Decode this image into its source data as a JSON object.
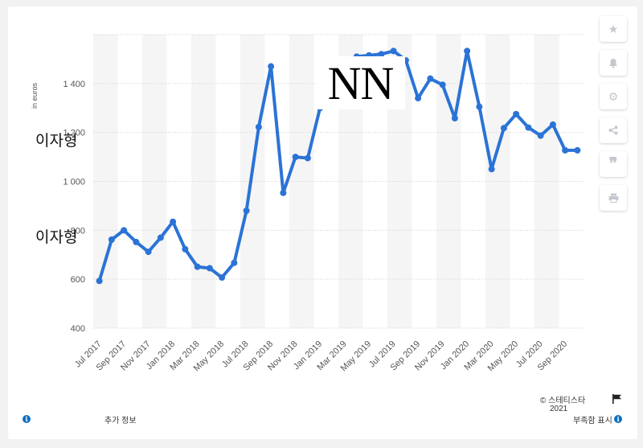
{
  "toolbar": {
    "icons": [
      "star-icon",
      "bell-icon",
      "gear-icon",
      "share-icon",
      "quote-icon",
      "print-icon"
    ]
  },
  "axis": {
    "ylabel": "in    euros"
  },
  "overlays": {
    "nn": "NN",
    "korean_1": "이자형",
    "korean_2": "이자형"
  },
  "footer": {
    "copyright": "© 스테티스타",
    "year": "2021",
    "more_info": "추가 정보",
    "show_source": "부족함 표시"
  },
  "colors": {
    "line": "#2b73d6",
    "band": "#f5f5f5",
    "grid": "#cfcfcf"
  },
  "chart_data": {
    "type": "line",
    "title": "",
    "xlabel": "",
    "ylabel": "in    euros",
    "ylim": [
      400,
      1600
    ],
    "yticks": [
      400,
      600,
      800,
      1000,
      1200,
      1400
    ],
    "ytick_labels": [
      "400",
      "600",
      "800",
      "1 000",
      "1 200",
      "1 400"
    ],
    "grid": true,
    "x": [
      "Jul 2017",
      "Aug 2017",
      "Sep 2017",
      "Oct 2017",
      "Nov 2017",
      "Dec 2017",
      "Jan 2018",
      "Feb 2018",
      "Mar 2018",
      "Apr 2018",
      "May 2018",
      "Jun 2018",
      "Jul 2018",
      "Aug 2018",
      "Sep 2018",
      "Oct 2018",
      "Nov 2018",
      "Dec 2018",
      "Jan 2019",
      "Feb 2019",
      "Mar 2019",
      "Apr 2019",
      "May 2019",
      "Jun 2019",
      "Jul 2019",
      "Aug 2019",
      "Sep 2019",
      "Oct 2019",
      "Nov 2019",
      "Dec 2019",
      "Jan 2020",
      "Feb 2020",
      "Mar 2020",
      "Apr 2020",
      "May 2020",
      "Jun 2020",
      "Jul 2020",
      "Aug 2020",
      "Sep 2020",
      "Oct 2020"
    ],
    "x_labels": [
      "Jul 2017",
      "",
      "Sep 2017",
      "",
      "Nov 2017",
      "",
      "Jan 2018",
      "",
      "Mar 2018",
      "",
      "May 2018",
      "",
      "Jul 2018",
      "",
      "Sep 2018",
      "",
      "Nov 2018",
      "",
      "Jan 2019",
      "",
      "Mar 2019",
      "",
      "May 2019",
      "",
      "Jul 2019",
      "",
      "Sep 2019",
      "",
      "Nov 2019",
      "",
      "Jan 2020",
      "",
      "Mar 2020",
      "",
      "May 2020",
      "",
      "Jul 2020",
      "",
      "Sep 2020",
      ""
    ],
    "series": [
      {
        "values": [
          593,
          762,
          800,
          752,
          712,
          770,
          835,
          723,
          651,
          645,
          607,
          667,
          880,
          1222,
          1470,
          953,
          1100,
          1095,
          1300,
          1400,
          1480,
          1510,
          1515,
          1520,
          1533,
          1495,
          1340,
          1420,
          1395,
          1258,
          1533,
          1305,
          1050,
          1218,
          1275,
          1220,
          1187,
          1232,
          1127,
          1127
        ]
      }
    ]
  }
}
